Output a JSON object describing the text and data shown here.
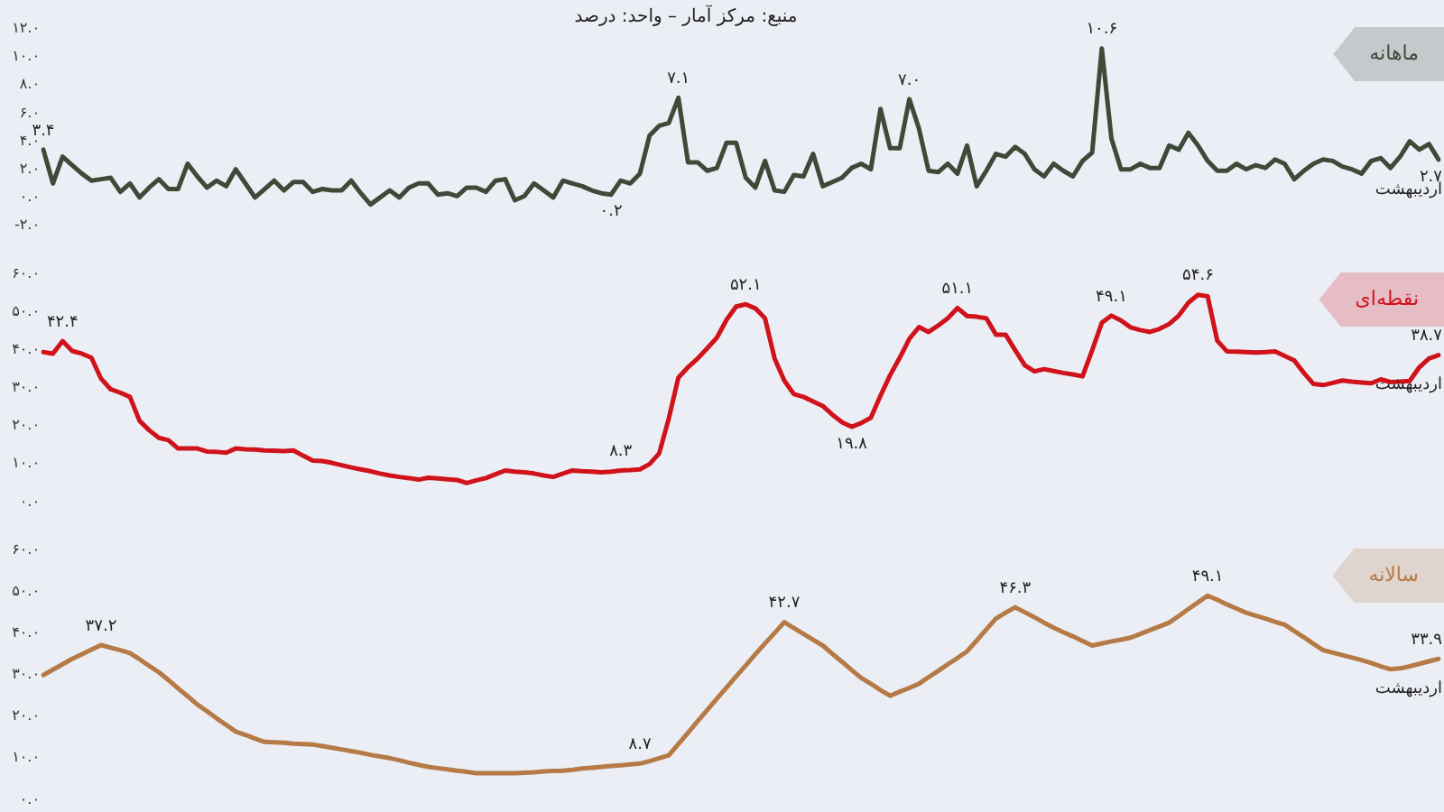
{
  "chart_data": [
    {
      "type": "line",
      "annotations": [
        "منبع: مرکز آمار – واحد: درصد",
        {
          "text": "اردیبهشت",
          "y": 2.7
        }
      ],
      "categories": [
        null,
        null,
        null,
        null,
        null,
        null,
        null,
        null,
        null,
        null,
        null,
        null,
        null,
        null,
        null,
        null,
        null,
        null,
        null,
        null,
        null,
        null,
        null,
        null,
        null,
        null,
        null,
        null,
        null,
        null,
        null,
        null,
        null,
        null,
        null,
        null,
        null,
        null,
        null,
        null,
        null,
        null,
        null,
        null,
        null,
        null,
        null,
        null,
        null,
        null,
        null,
        null,
        null,
        null,
        null,
        null,
        null,
        null,
        null,
        null,
        null,
        null,
        null,
        null,
        null,
        null,
        null,
        null,
        null,
        null,
        null,
        null,
        null,
        null,
        null,
        null,
        null,
        null,
        null,
        null,
        null,
        null,
        null,
        null,
        null,
        null,
        null,
        null,
        null,
        null,
        null,
        null,
        null,
        null,
        null,
        null,
        null,
        null,
        null,
        null,
        null,
        null,
        null,
        null,
        null,
        null,
        null,
        null,
        null,
        null,
        null,
        null,
        null,
        null,
        null,
        null,
        null,
        null,
        null,
        null,
        null,
        null,
        null,
        null,
        null,
        null,
        null,
        null,
        null,
        null,
        null,
        null,
        null,
        null,
        null,
        null,
        null,
        null,
        null,
        null,
        null,
        null,
        null,
        null,
        null,
        null
      ],
      "ylim": [
        -2,
        12
      ],
      "yticks": [
        {
          "value": -2,
          "label": "-۲.۰"
        },
        {
          "value": 0,
          "label": "۰.۰"
        },
        {
          "value": 2,
          "label": "۲.۰"
        },
        {
          "value": 4,
          "label": "۴.۰"
        },
        {
          "value": 6,
          "label": "۶.۰"
        },
        {
          "value": 8,
          "label": "۸.۰"
        },
        {
          "value": 10,
          "label": "۱۰.۰"
        },
        {
          "value": 12,
          "label": "۱۲.۰"
        }
      ],
      "tick_labels": "y",
      "series": [
        {
          "name": "ماهانه",
          "color": "#3d4a38",
          "values": [
            3.4,
            1.0,
            2.9,
            2.3,
            1.7,
            1.2,
            1.3,
            1.4,
            0.4,
            1.0,
            0.0,
            0.7,
            1.3,
            0.6,
            0.6,
            2.4,
            1.5,
            0.7,
            1.2,
            0.8,
            2.0,
            1.0,
            0.0,
            0.6,
            1.2,
            0.5,
            1.1,
            1.1,
            0.4,
            0.6,
            0.5,
            0.5,
            1.2,
            0.3,
            -0.5,
            0.0,
            0.5,
            0.0,
            0.7,
            1.0,
            1.0,
            0.2,
            0.3,
            0.1,
            0.7,
            0.7,
            0.4,
            1.2,
            1.3,
            -0.2,
            0.1,
            1.0,
            0.5,
            0.0,
            1.2,
            1.0,
            0.8,
            0.5,
            0.3,
            0.2,
            1.2,
            1.0,
            1.7,
            4.4,
            5.1,
            5.3,
            7.1,
            2.5,
            2.5,
            1.9,
            2.1,
            3.9,
            3.9,
            1.4,
            0.7,
            2.6,
            0.5,
            0.4,
            1.6,
            1.5,
            3.1,
            0.8,
            1.1,
            1.4,
            2.1,
            2.4,
            2.0,
            6.3,
            3.5,
            3.5,
            7.0,
            4.9,
            1.9,
            1.8,
            2.4,
            1.7,
            3.7,
            0.8,
            1.9,
            3.1,
            2.9,
            3.6,
            3.1,
            2.0,
            1.5,
            2.4,
            1.9,
            1.5,
            2.6,
            3.2,
            10.6,
            4.2,
            2.0,
            2.0,
            2.4,
            2.1,
            2.1,
            3.7,
            3.4,
            4.6,
            3.7,
            2.6,
            1.9,
            1.9,
            2.4,
            2.0,
            2.3,
            2.1,
            2.7,
            2.4,
            1.3,
            1.9,
            2.4,
            2.7,
            2.6,
            2.2,
            2.0,
            1.7,
            2.6,
            2.8,
            2.1,
            2.9,
            4.0,
            3.4,
            3.8,
            2.7
          ],
          "value_labels": [
            "۳.۴",
            null,
            null,
            null,
            null,
            null,
            null,
            null,
            null,
            null,
            null,
            null,
            null,
            null,
            null,
            null,
            null,
            null,
            null,
            null,
            null,
            null,
            null,
            null,
            null,
            null,
            null,
            null,
            null,
            null,
            null,
            null,
            null,
            null,
            null,
            null,
            null,
            null,
            null,
            null,
            null,
            null,
            null,
            null,
            null,
            null,
            null,
            null,
            null,
            null,
            null,
            null,
            null,
            null,
            null,
            null,
            null,
            null,
            null,
            "۰.۲",
            null,
            null,
            null,
            null,
            null,
            null,
            "۷.۱",
            null,
            null,
            null,
            null,
            null,
            null,
            null,
            null,
            null,
            null,
            null,
            null,
            null,
            null,
            null,
            null,
            null,
            null,
            null,
            null,
            null,
            null,
            null,
            "۷.۰",
            null,
            null,
            null,
            null,
            null,
            null,
            null,
            null,
            null,
            null,
            null,
            null,
            null,
            null,
            null,
            null,
            null,
            null,
            null,
            "۱۰.۶",
            null,
            null,
            null,
            null,
            null,
            null,
            null,
            null,
            null,
            null,
            null,
            null,
            null,
            null,
            null,
            null,
            null,
            null,
            null,
            null,
            null,
            null,
            null,
            null,
            null,
            null,
            null,
            null,
            null,
            null,
            null,
            null,
            null,
            null,
            "۲.۷"
          ]
        }
      ]
    },
    {
      "type": "line",
      "annotations": [
        "اردیبهشت"
      ],
      "categories": [
        null,
        null,
        null,
        null,
        null,
        null,
        null,
        null,
        null,
        null,
        null,
        null,
        null,
        null,
        null,
        null,
        null,
        null,
        null,
        null,
        null,
        null,
        null,
        null,
        null,
        null,
        null,
        null,
        null,
        null,
        null,
        null,
        null,
        null,
        null,
        null,
        null,
        null,
        null,
        null,
        null,
        null,
        null,
        null,
        null,
        null,
        null,
        null,
        null,
        null,
        null,
        null,
        null,
        null,
        null,
        null,
        null,
        null,
        null,
        null,
        null,
        null,
        null,
        null,
        null,
        null,
        null,
        null,
        null,
        null,
        null,
        null,
        null,
        null,
        null,
        null,
        null,
        null,
        null,
        null,
        null,
        null,
        null,
        null,
        null,
        null,
        null,
        null,
        null,
        null,
        null,
        null,
        null,
        null,
        null,
        null,
        null,
        null,
        null,
        null,
        null,
        null,
        null,
        null,
        null,
        null,
        null,
        null,
        null,
        null,
        null,
        null,
        null,
        null,
        null,
        null,
        null,
        null,
        null,
        null,
        null,
        null,
        null,
        null,
        null,
        null,
        null,
        null,
        null,
        null,
        null,
        null,
        null,
        null,
        null,
        null,
        null,
        null,
        null,
        null,
        null,
        null,
        null,
        null,
        null,
        null
      ],
      "ylim": [
        0,
        60
      ],
      "yticks": [
        {
          "value": 0,
          "label": "۰.۰"
        },
        {
          "value": 10,
          "label": "۱۰.۰"
        },
        {
          "value": 20,
          "label": "۲۰.۰"
        },
        {
          "value": 30,
          "label": "۳۰.۰"
        },
        {
          "value": 40,
          "label": "۴۰.۰"
        },
        {
          "value": 50,
          "label": "۵۰.۰"
        },
        {
          "value": 60,
          "label": "۶۰.۰"
        }
      ],
      "tick_labels": "y",
      "series": [
        {
          "name": "نقطه‌ای",
          "color": "#d0121b",
          "values": [
            39.5,
            39.1,
            42.4,
            39.8,
            39.1,
            38.0,
            32.5,
            29.7,
            28.8,
            27.7,
            21.4,
            18.9,
            16.9,
            16.3,
            14.1,
            14.1,
            14.1,
            13.3,
            13.2,
            13.0,
            14.1,
            13.9,
            13.8,
            13.6,
            13.5,
            13.4,
            13.6,
            12.2,
            10.9,
            10.8,
            10.3,
            9.7,
            9.1,
            8.6,
            8.1,
            7.5,
            7.0,
            6.6,
            6.3,
            5.9,
            6.4,
            6.2,
            6.0,
            5.8,
            5.0,
            5.7,
            6.3,
            7.3,
            8.3,
            8.0,
            7.8,
            7.5,
            7.0,
            6.6,
            7.5,
            8.3,
            8.1,
            8.0,
            7.8,
            8.0,
            8.3,
            8.4,
            8.6,
            10.0,
            12.8,
            22.0,
            32.8,
            35.5,
            37.8,
            40.5,
            43.3,
            48.0,
            51.5,
            52.1,
            51.0,
            48.4,
            37.8,
            32.0,
            28.4,
            27.7,
            26.5,
            25.3,
            23.0,
            21.0,
            19.8,
            20.8,
            22.2,
            28.0,
            33.4,
            38.0,
            43.0,
            46.1,
            44.8,
            46.5,
            48.4,
            51.1,
            49.0,
            48.8,
            48.4,
            44.1,
            44.1,
            40.0,
            36.0,
            34.4,
            35.0,
            34.5,
            34.0,
            33.6,
            33.1,
            40.0,
            47.2,
            49.1,
            47.8,
            46.0,
            45.3,
            44.8,
            45.6,
            46.9,
            49.1,
            52.5,
            54.6,
            54.2,
            42.5,
            39.7,
            39.6,
            39.5,
            39.4,
            39.5,
            39.7,
            38.5,
            37.3,
            34.0,
            31.1,
            30.8,
            31.4,
            32.0,
            31.7,
            31.5,
            31.3,
            32.3,
            31.6,
            31.7,
            31.9,
            35.5,
            37.8,
            38.7
          ],
          "value_labels": [
            null,
            null,
            "۴۲.۴",
            null,
            null,
            null,
            null,
            null,
            null,
            null,
            null,
            null,
            null,
            null,
            null,
            null,
            null,
            null,
            null,
            null,
            null,
            null,
            null,
            null,
            null,
            null,
            null,
            null,
            null,
            null,
            null,
            null,
            null,
            null,
            null,
            null,
            null,
            null,
            null,
            null,
            null,
            null,
            null,
            null,
            null,
            null,
            null,
            null,
            null,
            null,
            null,
            null,
            null,
            null,
            null,
            null,
            null,
            null,
            null,
            null,
            "۸.۳",
            null,
            null,
            null,
            null,
            null,
            null,
            null,
            null,
            null,
            null,
            null,
            null,
            "۵۲.۱",
            null,
            null,
            null,
            null,
            null,
            null,
            null,
            null,
            null,
            null,
            "۱۹.۸",
            null,
            null,
            null,
            null,
            null,
            null,
            null,
            null,
            null,
            null,
            "۵۱.۱",
            null,
            null,
            null,
            null,
            null,
            null,
            null,
            null,
            null,
            null,
            null,
            null,
            null,
            null,
            null,
            "۴۹.۱",
            null,
            null,
            null,
            null,
            null,
            null,
            null,
            null,
            "۵۴.۶",
            null,
            null,
            null,
            null,
            null,
            null,
            null,
            null,
            null,
            null,
            null,
            null,
            null,
            null,
            null,
            null,
            null,
            null,
            null,
            null,
            null,
            null,
            null,
            null,
            "۳۸.۷"
          ]
        }
      ]
    },
    {
      "type": "line",
      "annotations": [
        {
          "text": "اردیبهشت",
          "y": 33.9
        }
      ],
      "categories": [
        null,
        null,
        null,
        null,
        null,
        null,
        null,
        null,
        null,
        null,
        null,
        null,
        null,
        null,
        null,
        null,
        null,
        null,
        null,
        null,
        null,
        null,
        null,
        null,
        null,
        null,
        null,
        null,
        null,
        null,
        null,
        null,
        null,
        null,
        null,
        null,
        null,
        null,
        null,
        null,
        null,
        null,
        null,
        null,
        null,
        null,
        null,
        null,
        null,
        null,
        null,
        null,
        null,
        null,
        null,
        null,
        null,
        null,
        null,
        null,
        null,
        null,
        null,
        null,
        null,
        null,
        null,
        null,
        null,
        null,
        null,
        null,
        null,
        null,
        null,
        null,
        null,
        null,
        null,
        null,
        null,
        null,
        null,
        null,
        null,
        null,
        null,
        null,
        null,
        null,
        null,
        null,
        null,
        null,
        null,
        null,
        null,
        null,
        null,
        null,
        null,
        null,
        null,
        null,
        null,
        null,
        null,
        null,
        null,
        null,
        null,
        null,
        null,
        null,
        null,
        null,
        null,
        null,
        null,
        null,
        null,
        null,
        null,
        null,
        null,
        null,
        null,
        null,
        null,
        null,
        null,
        null,
        null,
        null,
        null,
        null,
        null,
        null,
        null,
        null,
        null,
        null,
        null,
        null,
        null,
        null
      ],
      "ylim": [
        0,
        60
      ],
      "yticks": [
        {
          "value": 0,
          "label": "۰.۰"
        },
        {
          "value": 10,
          "label": "۱۰.۰"
        },
        {
          "value": 20,
          "label": "۲۰.۰"
        },
        {
          "value": 30,
          "label": "۳۰.۰"
        },
        {
          "value": 40,
          "label": "۴۰.۰"
        },
        {
          "value": 50,
          "label": "۵۰.۰"
        },
        {
          "value": 60,
          "label": "۶۰.۰"
        }
      ],
      "tick_labels": "y",
      "series": [
        {
          "name": "سالانه",
          "color": "#b57a45",
          "values": [
            30.0,
            31.3,
            32.6,
            33.9,
            35.0,
            36.1,
            37.2,
            36.6,
            36.0,
            35.3,
            33.8,
            32.2,
            30.7,
            28.8,
            26.8,
            24.9,
            22.9,
            21.3,
            19.6,
            18.0,
            16.4,
            15.6,
            14.7,
            13.9,
            13.8,
            13.7,
            13.5,
            13.4,
            13.3,
            12.9,
            12.5,
            12.1,
            11.7,
            11.3,
            10.8,
            10.4,
            10.0,
            9.5,
            8.9,
            8.4,
            7.9,
            7.6,
            7.3,
            7.0,
            6.7,
            6.4,
            6.4,
            6.4,
            6.4,
            6.4,
            6.5,
            6.6,
            6.8,
            6.9,
            7.0,
            7.2,
            7.5,
            7.7,
            7.9,
            8.1,
            8.3,
            8.5,
            8.7,
            9.3,
            10.0,
            10.7,
            13.4,
            16.1,
            18.9,
            21.6,
            24.3,
            27.0,
            29.7,
            32.3,
            35.0,
            37.6,
            40.1,
            42.7,
            41.3,
            39.9,
            38.5,
            37.1,
            35.1,
            33.2,
            31.2,
            29.3,
            27.9,
            26.4,
            25.0,
            26.0,
            26.9,
            27.9,
            29.5,
            31.0,
            32.6,
            34.1,
            35.7,
            38.3,
            41.0,
            43.6,
            45.0,
            46.3,
            45.1,
            43.9,
            42.6,
            41.4,
            40.3,
            39.3,
            38.2,
            37.1,
            37.6,
            38.1,
            38.5,
            39.0,
            39.9,
            40.8,
            41.7,
            42.6,
            44.2,
            45.9,
            47.5,
            49.1,
            48.1,
            47.0,
            46.0,
            45.0,
            44.3,
            43.6,
            42.8,
            42.1,
            40.6,
            39.1,
            37.5,
            36.0,
            35.4,
            34.8,
            34.2,
            33.6,
            32.9,
            32.1,
            31.4,
            31.6,
            32.1,
            32.7,
            33.3,
            33.9
          ],
          "value_labels": [
            null,
            null,
            null,
            null,
            null,
            null,
            "۳۷.۲",
            null,
            null,
            null,
            null,
            null,
            null,
            null,
            null,
            null,
            null,
            null,
            null,
            null,
            null,
            null,
            null,
            null,
            null,
            null,
            null,
            null,
            null,
            null,
            null,
            null,
            null,
            null,
            null,
            null,
            null,
            null,
            null,
            null,
            null,
            null,
            null,
            null,
            null,
            null,
            null,
            null,
            null,
            null,
            null,
            null,
            null,
            null,
            null,
            null,
            null,
            null,
            null,
            null,
            null,
            null,
            "۸.۷",
            null,
            null,
            null,
            null,
            null,
            null,
            null,
            null,
            null,
            null,
            null,
            null,
            null,
            null,
            "۴۲.۷",
            null,
            null,
            null,
            null,
            null,
            null,
            null,
            null,
            null,
            null,
            null,
            null,
            null,
            null,
            null,
            null,
            null,
            null,
            null,
            null,
            null,
            null,
            null,
            "۴۶.۳",
            null,
            null,
            null,
            null,
            null,
            null,
            null,
            null,
            null,
            null,
            null,
            null,
            null,
            null,
            null,
            null,
            null,
            null,
            null,
            "۴۹.۱",
            null,
            null,
            null,
            null,
            null,
            null,
            null,
            null,
            null,
            null,
            null,
            null,
            null,
            null,
            null,
            null,
            null,
            null,
            null,
            null,
            null,
            null,
            null,
            "۳۳.۹"
          ]
        }
      ]
    }
  ]
}
